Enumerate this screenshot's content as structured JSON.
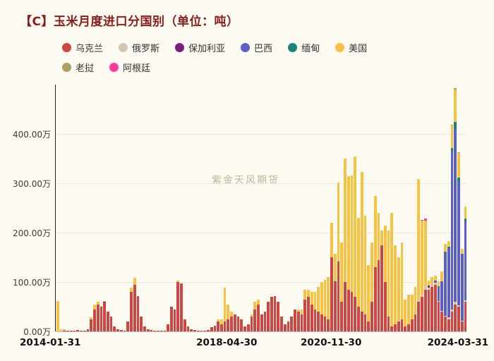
{
  "title": "【C】玉米月度进口分国别（单位：吨）",
  "watermark": "紫金天风期货",
  "legend": {
    "rows": [
      [
        {
          "label": "乌克兰",
          "color": "#cf4541"
        },
        {
          "label": "俄罗斯",
          "color": "#d4c6b2"
        },
        {
          "label": "保加利亚",
          "color": "#7a1e7e"
        },
        {
          "label": "巴西",
          "color": "#5a5fc7"
        },
        {
          "label": "缅甸",
          "color": "#17837b"
        },
        {
          "label": "美国",
          "color": "#f7c242"
        }
      ],
      [
        {
          "label": "老挝",
          "color": "#ab9f63"
        },
        {
          "label": "阿根廷",
          "color": "#ff3ba0"
        }
      ]
    ]
  },
  "chart_data": {
    "type": "bar",
    "stacked": true,
    "title": "玉米月度进口分国别",
    "unit_note": "单位：吨 (axis shown in 万)",
    "ylim": [
      0,
      500
    ],
    "yticks": [
      "0.00万",
      "100.00万",
      "200.00万",
      "300.00万",
      "400.00万"
    ],
    "ytick_values": [
      0,
      100,
      200,
      300,
      400
    ],
    "xticks": [
      {
        "label": "2014-01-31",
        "index": 0
      },
      {
        "label": "2018-04-30",
        "index": 51
      },
      {
        "label": "2020-11-30",
        "index": 82
      },
      {
        "label": "2024-03-31",
        "index": 122
      }
    ],
    "x": [
      "2014-01",
      "2014-02",
      "2014-03",
      "2014-04",
      "2014-05",
      "2014-06",
      "2014-07",
      "2014-08",
      "2014-09",
      "2014-10",
      "2014-11",
      "2014-12",
      "2015-01",
      "2015-02",
      "2015-03",
      "2015-04",
      "2015-05",
      "2015-06",
      "2015-07",
      "2015-08",
      "2015-09",
      "2015-10",
      "2015-11",
      "2015-12",
      "2016-01",
      "2016-02",
      "2016-03",
      "2016-04",
      "2016-05",
      "2016-06",
      "2016-07",
      "2016-08",
      "2016-09",
      "2016-10",
      "2016-11",
      "2016-12",
      "2017-01",
      "2017-02",
      "2017-03",
      "2017-04",
      "2017-05",
      "2017-06",
      "2017-07",
      "2017-08",
      "2017-09",
      "2017-10",
      "2017-11",
      "2017-12",
      "2018-01",
      "2018-02",
      "2018-03",
      "2018-04",
      "2018-05",
      "2018-06",
      "2018-07",
      "2018-08",
      "2018-09",
      "2018-10",
      "2018-11",
      "2018-12",
      "2019-01",
      "2019-02",
      "2019-03",
      "2019-04",
      "2019-05",
      "2019-06",
      "2019-07",
      "2019-08",
      "2019-09",
      "2019-10",
      "2019-11",
      "2019-12",
      "2020-01",
      "2020-02",
      "2020-03",
      "2020-04",
      "2020-05",
      "2020-06",
      "2020-07",
      "2020-08",
      "2020-09",
      "2020-10",
      "2020-11",
      "2020-12",
      "2021-01",
      "2021-02",
      "2021-03",
      "2021-04",
      "2021-05",
      "2021-06",
      "2021-07",
      "2021-08",
      "2021-09",
      "2021-10",
      "2021-11",
      "2021-12",
      "2022-01",
      "2022-02",
      "2022-03",
      "2022-04",
      "2022-05",
      "2022-06",
      "2022-07",
      "2022-08",
      "2022-09",
      "2022-10",
      "2022-11",
      "2022-12",
      "2023-01",
      "2023-02",
      "2023-03",
      "2023-04",
      "2023-05",
      "2023-06",
      "2023-07",
      "2023-08",
      "2023-09",
      "2023-10",
      "2023-11",
      "2023-12",
      "2024-01",
      "2024-02",
      "2024-03"
    ],
    "series": [
      {
        "name": "乌克兰",
        "color": "#cf4541",
        "values": [
          0,
          0,
          2,
          1,
          2,
          1,
          3,
          2,
          1,
          5,
          25,
          45,
          55,
          50,
          58,
          40,
          30,
          10,
          5,
          3,
          2,
          20,
          80,
          95,
          72,
          30,
          10,
          5,
          3,
          2,
          1,
          1,
          2,
          15,
          50,
          45,
          100,
          97,
          25,
          10,
          5,
          3,
          2,
          1,
          1,
          3,
          8,
          12,
          20,
          15,
          20,
          25,
          30,
          35,
          30,
          25,
          10,
          15,
          30,
          45,
          55,
          35,
          40,
          60,
          70,
          72,
          60,
          30,
          15,
          20,
          30,
          45,
          40,
          35,
          65,
          70,
          55,
          45,
          40,
          35,
          30,
          25,
          150,
          100,
          140,
          60,
          100,
          85,
          80,
          70,
          50,
          40,
          35,
          20,
          60,
          130,
          145,
          175,
          100,
          30,
          10,
          15,
          20,
          25,
          10,
          15,
          25,
          35,
          60,
          70,
          85,
          85,
          90,
          95,
          60,
          40,
          30,
          25,
          40,
          55,
          50,
          20,
          60
        ]
      },
      {
        "name": "俄罗斯",
        "color": "#d4c6b2",
        "values": [
          0,
          0,
          0,
          0,
          0,
          0,
          0,
          0,
          0,
          0,
          0,
          0,
          0,
          2,
          0,
          0,
          0,
          0,
          0,
          0,
          0,
          0,
          0,
          0,
          0,
          0,
          0,
          0,
          0,
          0,
          0,
          0,
          0,
          0,
          0,
          0,
          0,
          0,
          0,
          0,
          0,
          0,
          0,
          0,
          0,
          0,
          0,
          0,
          0,
          0,
          0,
          0,
          0,
          0,
          0,
          0,
          0,
          0,
          0,
          0,
          0,
          0,
          0,
          0,
          0,
          0,
          0,
          0,
          0,
          0,
          0,
          0,
          0,
          0,
          0,
          0,
          0,
          0,
          0,
          0,
          0,
          0,
          0,
          0,
          0,
          0,
          0,
          0,
          0,
          0,
          0,
          0,
          0,
          0,
          0,
          0,
          0,
          0,
          0,
          0,
          0,
          0,
          0,
          0,
          0,
          0,
          0,
          0,
          3,
          4,
          5,
          3,
          5,
          3,
          2,
          2,
          2,
          3,
          4,
          5,
          3,
          2,
          3
        ]
      },
      {
        "name": "保加利亚",
        "color": "#7a1e7e",
        "values": [
          0,
          0,
          0,
          0,
          0,
          0,
          0,
          0,
          0,
          0,
          0,
          0,
          0,
          0,
          2,
          0,
          0,
          0,
          0,
          0,
          0,
          0,
          0,
          0,
          0,
          0,
          0,
          0,
          0,
          0,
          0,
          0,
          0,
          0,
          0,
          0,
          0,
          0,
          0,
          0,
          0,
          0,
          0,
          0,
          0,
          0,
          0,
          0,
          0,
          0,
          0,
          0,
          0,
          0,
          0,
          0,
          0,
          0,
          0,
          0,
          0,
          0,
          0,
          0,
          0,
          0,
          0,
          0,
          0,
          0,
          0,
          0,
          0,
          0,
          0,
          0,
          0,
          0,
          0,
          0,
          0,
          0,
          0,
          0,
          0,
          0,
          0,
          0,
          0,
          0,
          0,
          0,
          0,
          0,
          0,
          0,
          0,
          0,
          0,
          0,
          0,
          0,
          0,
          0,
          0,
          0,
          0,
          0,
          0,
          0,
          0,
          5,
          0,
          0,
          0,
          0,
          0,
          0,
          0,
          0,
          0,
          0,
          0
        ]
      },
      {
        "name": "巴西",
        "color": "#5a5fc7",
        "values": [
          0,
          0,
          0,
          0,
          0,
          0,
          0,
          0,
          0,
          0,
          0,
          0,
          0,
          0,
          0,
          0,
          0,
          0,
          0,
          0,
          0,
          0,
          0,
          0,
          0,
          0,
          0,
          0,
          0,
          0,
          0,
          0,
          0,
          0,
          0,
          0,
          0,
          0,
          0,
          0,
          0,
          0,
          0,
          0,
          0,
          0,
          0,
          0,
          0,
          0,
          0,
          0,
          0,
          0,
          0,
          0,
          0,
          0,
          0,
          0,
          0,
          0,
          0,
          0,
          0,
          0,
          0,
          0,
          0,
          0,
          0,
          0,
          0,
          0,
          0,
          0,
          0,
          0,
          0,
          0,
          0,
          0,
          0,
          0,
          0,
          0,
          0,
          0,
          0,
          0,
          0,
          0,
          0,
          0,
          0,
          0,
          0,
          0,
          0,
          0,
          0,
          0,
          0,
          0,
          0,
          0,
          0,
          0,
          0,
          0,
          0,
          0,
          0,
          5,
          30,
          60,
          130,
          140,
          320,
          350,
          250,
          135,
          160
        ]
      },
      {
        "name": "缅甸",
        "color": "#17837b",
        "values": [
          0,
          0,
          0,
          0,
          0,
          0,
          0,
          0,
          0,
          0,
          0,
          0,
          0,
          0,
          0,
          0,
          0,
          0,
          0,
          0,
          0,
          0,
          0,
          0,
          0,
          0,
          0,
          0,
          0,
          0,
          0,
          0,
          0,
          0,
          0,
          0,
          0,
          0,
          0,
          0,
          0,
          0,
          0,
          0,
          0,
          0,
          0,
          0,
          0,
          0,
          0,
          0,
          0,
          0,
          0,
          0,
          0,
          0,
          0,
          0,
          0,
          0,
          0,
          0,
          0,
          0,
          0,
          0,
          0,
          0,
          0,
          0,
          0,
          0,
          0,
          0,
          0,
          0,
          0,
          0,
          0,
          0,
          0,
          2,
          2,
          0,
          0,
          0,
          0,
          0,
          0,
          0,
          0,
          0,
          0,
          0,
          0,
          0,
          0,
          0,
          0,
          0,
          0,
          0,
          0,
          0,
          0,
          0,
          0,
          0,
          0,
          0,
          0,
          0,
          0,
          0,
          0,
          3,
          8,
          15,
          8,
          0,
          5
        ]
      },
      {
        "name": "美国",
        "color": "#f7c242",
        "values": [
          62,
          5,
          3,
          0,
          0,
          0,
          0,
          0,
          0,
          0,
          3,
          10,
          5,
          0,
          2,
          0,
          0,
          0,
          0,
          0,
          0,
          0,
          8,
          13,
          0,
          0,
          0,
          0,
          0,
          0,
          0,
          0,
          0,
          0,
          0,
          0,
          3,
          0,
          0,
          0,
          0,
          0,
          0,
          0,
          0,
          0,
          0,
          0,
          5,
          10,
          68,
          30,
          10,
          0,
          0,
          0,
          0,
          0,
          5,
          15,
          10,
          0,
          0,
          0,
          0,
          0,
          0,
          0,
          0,
          0,
          0,
          0,
          5,
          10,
          20,
          15,
          25,
          35,
          50,
          65,
          75,
          85,
          70,
          55,
          160,
          120,
          250,
          230,
          236,
          285,
          180,
          283,
          200,
          115,
          120,
          145,
          95,
          30,
          115,
          175,
          230,
          160,
          130,
          155,
          55,
          60,
          50,
          55,
          245,
          150,
          135,
          10,
          15,
          10,
          10,
          20,
          15,
          12,
          45,
          65,
          50,
          10,
          25
        ]
      },
      {
        "name": "老挝",
        "color": "#ab9f63",
        "values": [
          0,
          0,
          0,
          0,
          0,
          0,
          0,
          0,
          0,
          0,
          0,
          0,
          0,
          0,
          0,
          0,
          0,
          0,
          0,
          0,
          0,
          0,
          0,
          0,
          0,
          0,
          0,
          0,
          0,
          0,
          0,
          0,
          0,
          0,
          0,
          0,
          0,
          0,
          0,
          0,
          0,
          0,
          0,
          0,
          0,
          0,
          0,
          0,
          0,
          0,
          0,
          0,
          0,
          0,
          0,
          0,
          0,
          0,
          0,
          0,
          0,
          0,
          0,
          0,
          0,
          0,
          0,
          0,
          0,
          0,
          0,
          0,
          0,
          0,
          0,
          0,
          0,
          0,
          0,
          0,
          0,
          0,
          0,
          0,
          0,
          0,
          0,
          0,
          0,
          0,
          0,
          0,
          0,
          0,
          0,
          0,
          0,
          0,
          0,
          0,
          0,
          0,
          0,
          0,
          0,
          0,
          0,
          0,
          0,
          0,
          0,
          0,
          0,
          0,
          0,
          0,
          0,
          0,
          2,
          3,
          2,
          0,
          0
        ]
      },
      {
        "name": "阿根廷",
        "color": "#ff3ba0",
        "values": [
          0,
          0,
          0,
          0,
          0,
          0,
          0,
          0,
          0,
          0,
          0,
          0,
          0,
          0,
          0,
          0,
          0,
          0,
          0,
          0,
          0,
          0,
          0,
          0,
          0,
          0,
          0,
          0,
          0,
          0,
          0,
          0,
          0,
          0,
          0,
          0,
          0,
          0,
          0,
          0,
          0,
          0,
          0,
          0,
          0,
          0,
          0,
          0,
          0,
          0,
          0,
          0,
          0,
          0,
          0,
          0,
          0,
          0,
          0,
          0,
          0,
          0,
          0,
          0,
          0,
          0,
          0,
          0,
          0,
          0,
          0,
          0,
          0,
          0,
          0,
          0,
          0,
          0,
          0,
          0,
          0,
          0,
          0,
          0,
          0,
          0,
          0,
          0,
          0,
          0,
          0,
          0,
          0,
          0,
          0,
          0,
          0,
          0,
          0,
          0,
          0,
          0,
          0,
          0,
          0,
          0,
          0,
          0,
          0,
          2,
          3,
          0,
          0,
          0,
          0,
          0,
          0,
          0,
          0,
          0,
          0,
          0,
          0
        ]
      }
    ]
  }
}
